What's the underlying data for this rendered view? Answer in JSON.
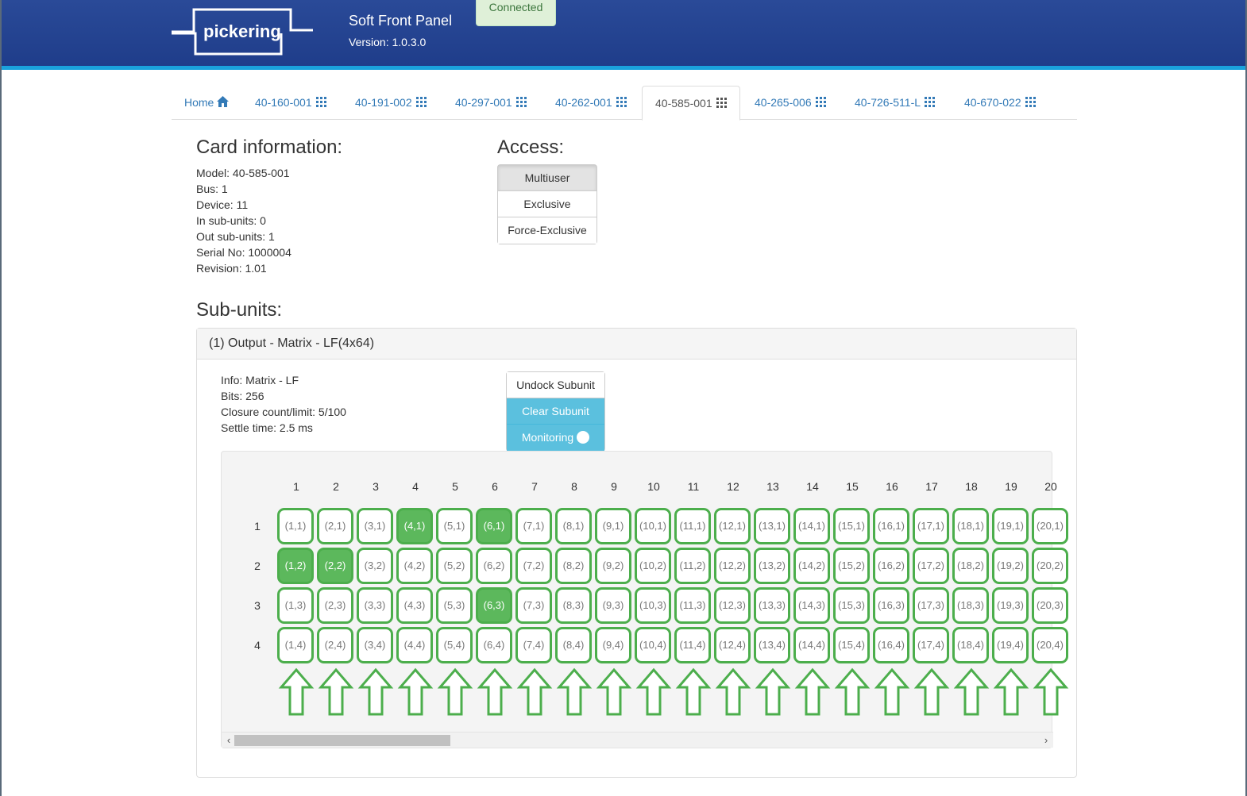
{
  "header": {
    "logo_text": "pickering",
    "title": "Soft Front Panel",
    "version": "Version: 1.0.3.0",
    "status": "Connected"
  },
  "tabs": [
    {
      "label": "Home",
      "icon": "home-icon"
    },
    {
      "label": "40-160-001",
      "icon": "grid-icon"
    },
    {
      "label": "40-191-002",
      "icon": "grid-icon"
    },
    {
      "label": "40-297-001",
      "icon": "grid-icon"
    },
    {
      "label": "40-262-001",
      "icon": "grid-icon"
    },
    {
      "label": "40-585-001",
      "icon": "grid-icon",
      "active": true
    },
    {
      "label": "40-265-006",
      "icon": "grid-icon"
    },
    {
      "label": "40-726-511-L",
      "icon": "grid-icon"
    },
    {
      "label": "40-670-022",
      "icon": "grid-icon"
    }
  ],
  "card": {
    "title": "Card information:",
    "info": [
      "Model: 40-585-001",
      "Bus: 1",
      "Device: 11",
      "In sub-units: 0",
      "Out sub-units: 1",
      "Serial No: 1000004",
      "Revision: 1.01"
    ]
  },
  "access": {
    "title": "Access:",
    "options": [
      "Multiuser",
      "Exclusive",
      "Force-Exclusive"
    ],
    "selected": "Multiuser"
  },
  "subunits": {
    "title": "Sub-units:",
    "panel_heading": "(1) Output - Matrix - LF(4x64)",
    "info": [
      "Info: Matrix - LF",
      "Bits: 256",
      "Closure count/limit: 5/100",
      "Settle time: 2.5 ms"
    ],
    "buttons": {
      "undock": "Undock Subunit",
      "clear": "Clear Subunit",
      "monitoring": "Monitoring"
    }
  },
  "matrix": {
    "columns": [
      "1",
      "2",
      "3",
      "4",
      "5",
      "6",
      "7",
      "8",
      "9",
      "10",
      "11",
      "12",
      "13",
      "14",
      "15",
      "16",
      "17",
      "18",
      "19",
      "20"
    ],
    "rows": [
      "1",
      "2",
      "3",
      "4"
    ],
    "closed": [
      "4,1",
      "6,1",
      "1,2",
      "2,2",
      "6,3"
    ],
    "colors": {
      "on": "#5cb85c",
      "border": "#4cae4c"
    }
  },
  "colors": {
    "header_bg": "#21418f",
    "header_stripe": "#1aa2dc",
    "link": "#337ab7",
    "info_button": "#5bc0de"
  }
}
